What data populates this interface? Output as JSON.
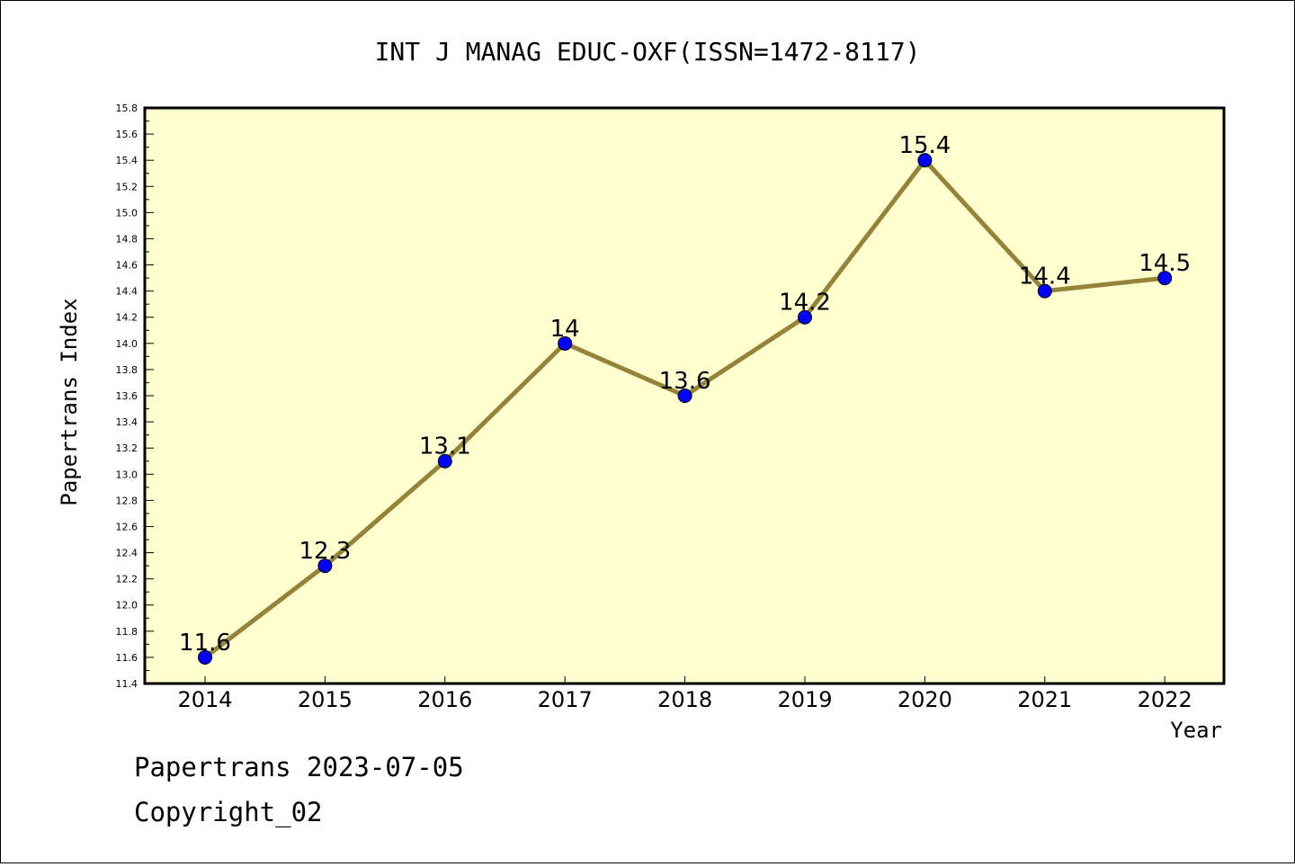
{
  "chart_data": {
    "type": "line",
    "title": "INT J MANAG EDUC-OXF(ISSN=1472-8117)",
    "xlabel": "Year",
    "ylabel": "Papertrans Index",
    "x": [
      "2014",
      "2015",
      "2016",
      "2017",
      "2018",
      "2019",
      "2020",
      "2021",
      "2022"
    ],
    "values": [
      11.6,
      12.3,
      13.1,
      14.0,
      13.6,
      14.2,
      15.4,
      14.4,
      14.5
    ],
    "data_labels": [
      "11.6",
      "12.3",
      "13.1",
      "14",
      "13.6",
      "14.2",
      "15.4",
      "14.4",
      "14.5"
    ],
    "ylim": [
      11.4,
      15.8
    ],
    "y_ticks": [
      "11.4",
      "11.6",
      "11.8",
      "12.0",
      "12.2",
      "12.4",
      "12.6",
      "12.8",
      "13.0",
      "13.2",
      "13.4",
      "13.6",
      "13.8",
      "14.0",
      "14.2",
      "14.4",
      "14.6",
      "14.8",
      "15.0",
      "15.2",
      "15.4",
      "15.6",
      "15.8"
    ],
    "grid": false,
    "colors": {
      "line": "#948339",
      "marker": "#0000ff",
      "plot_background": "#ffffd0"
    }
  },
  "footer": {
    "line1": "Papertrans 2023-07-05",
    "line2": "Copyright_02"
  }
}
